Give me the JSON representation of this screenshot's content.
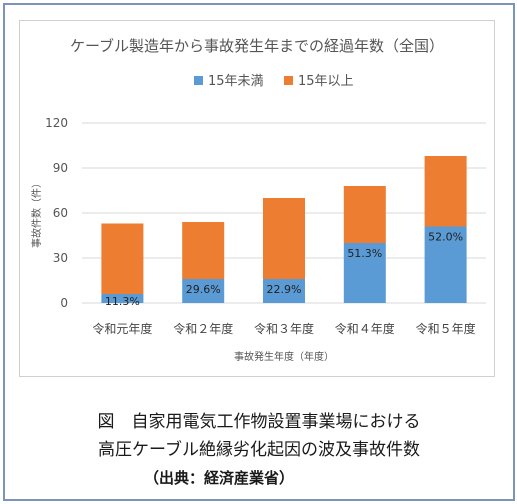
{
  "chart_data": {
    "type": "bar",
    "stacked": true,
    "title": "ケーブル製造年から事故発生年までの経過年数（全国）",
    "xlabel": "事故発生年度（年度）",
    "ylabel": "事故件数（件）",
    "ylim": [
      0,
      120
    ],
    "yticks": [
      "0",
      "30",
      "60",
      "90",
      "120"
    ],
    "categories": [
      "令和元年度",
      "令和２年度",
      "令和３年度",
      "令和４年度",
      "令和５年度"
    ],
    "series": [
      {
        "name": "15年未満",
        "color": "#5b9bd5",
        "values": [
          6,
          16,
          16,
          40,
          51
        ]
      },
      {
        "name": "15年以上",
        "color": "#ed7d31",
        "values": [
          47,
          38,
          54,
          38,
          47
        ]
      }
    ],
    "data_labels": [
      "11.3%",
      "29.6%",
      "22.9%",
      "51.3%",
      "52.0%"
    ],
    "legend_position": "top"
  },
  "caption": {
    "line1": "図　自家用電気工作物設置事業場における",
    "line2": "高圧ケーブル絶縁劣化起因の波及事故件数",
    "source": "（出典：経済産業省）"
  }
}
